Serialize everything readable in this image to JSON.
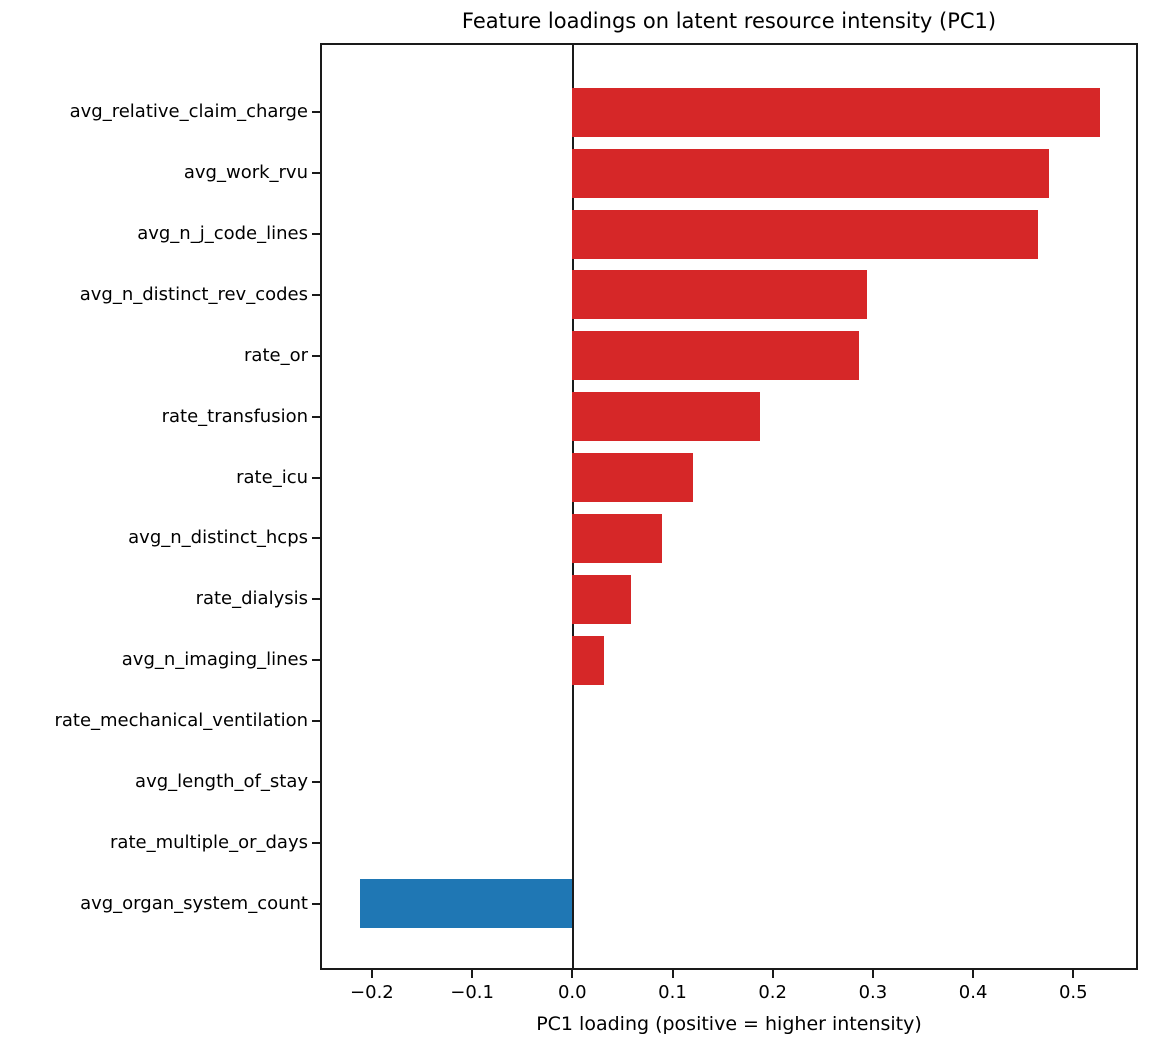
{
  "chart_data": {
    "type": "bar",
    "orientation": "horizontal",
    "title": "Feature loadings on latent resource intensity (PC1)",
    "xlabel": "PC1 loading (positive = higher intensity)",
    "ylabel": "",
    "categories": [
      "avg_relative_claim_charge",
      "avg_work_rvu",
      "avg_n_j_code_lines",
      "avg_n_distinct_rev_codes",
      "rate_or",
      "rate_transfusion",
      "rate_icu",
      "avg_n_distinct_hcps",
      "rate_dialysis",
      "avg_n_imaging_lines",
      "rate_mechanical_ventilation",
      "avg_length_of_stay",
      "rate_multiple_or_days",
      "avg_organ_system_count"
    ],
    "values": [
      0.527,
      0.476,
      0.465,
      0.294,
      0.286,
      0.187,
      0.12,
      0.09,
      0.059,
      0.032,
      0.0,
      0.0,
      0.0,
      -0.212
    ],
    "xlim": [
      -0.251,
      0.564
    ],
    "xticks": [
      -0.2,
      -0.1,
      0.0,
      0.1,
      0.2,
      0.3,
      0.4,
      0.5
    ],
    "xtick_labels": [
      "−0.2",
      "−0.1",
      "0.0",
      "0.1",
      "0.2",
      "0.3",
      "0.4",
      "0.5"
    ],
    "grid": false,
    "legend": null,
    "zero_line": true,
    "colors": {
      "positive_bar": "#d62728",
      "negative_bar": "#1f77b4",
      "axis": "#1a1a1a",
      "background": "#ffffff"
    }
  }
}
